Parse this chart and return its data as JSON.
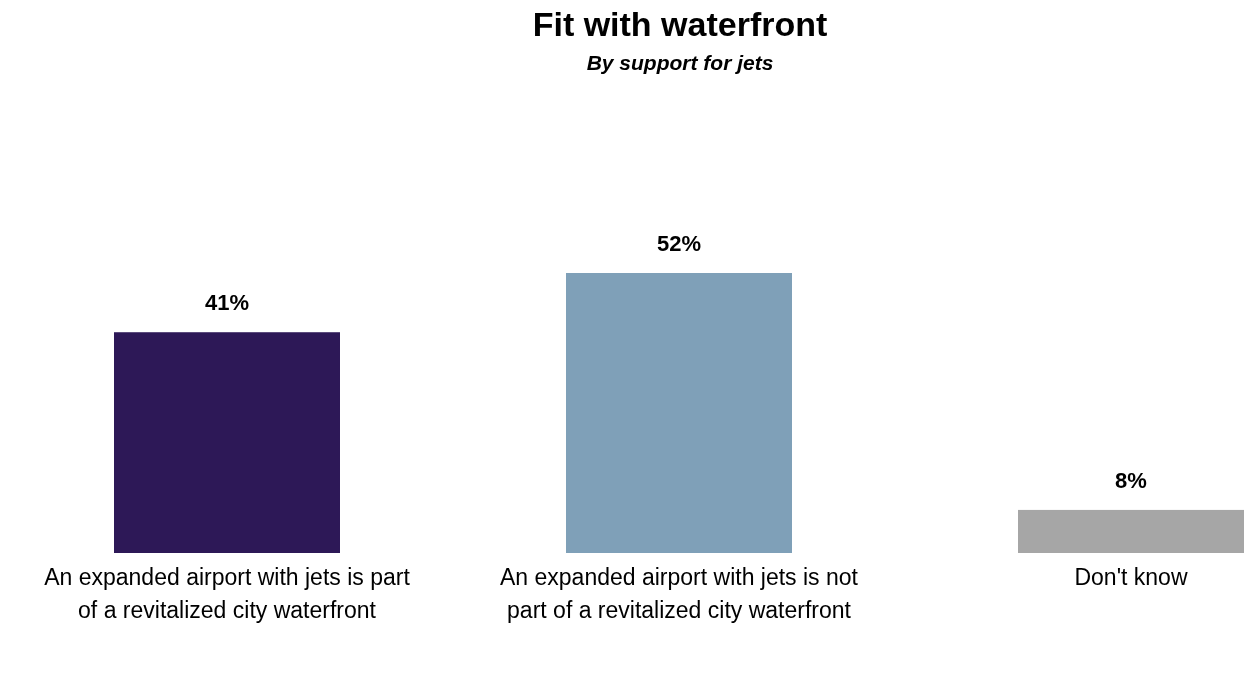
{
  "chart_data": {
    "type": "bar",
    "title": "Fit with waterfront",
    "subtitle": "By support for jets",
    "categories": [
      "An expanded airport with jets is part of a revitalized city waterfront",
      "An expanded airport with jets is not part of a revitalized city waterfront",
      "Don't know"
    ],
    "values": [
      41,
      52,
      8
    ],
    "colors": [
      "#2d1857",
      "#7fa0b8",
      "#a6a6a6"
    ],
    "value_labels": [
      "41%",
      "52%",
      "8%"
    ]
  }
}
